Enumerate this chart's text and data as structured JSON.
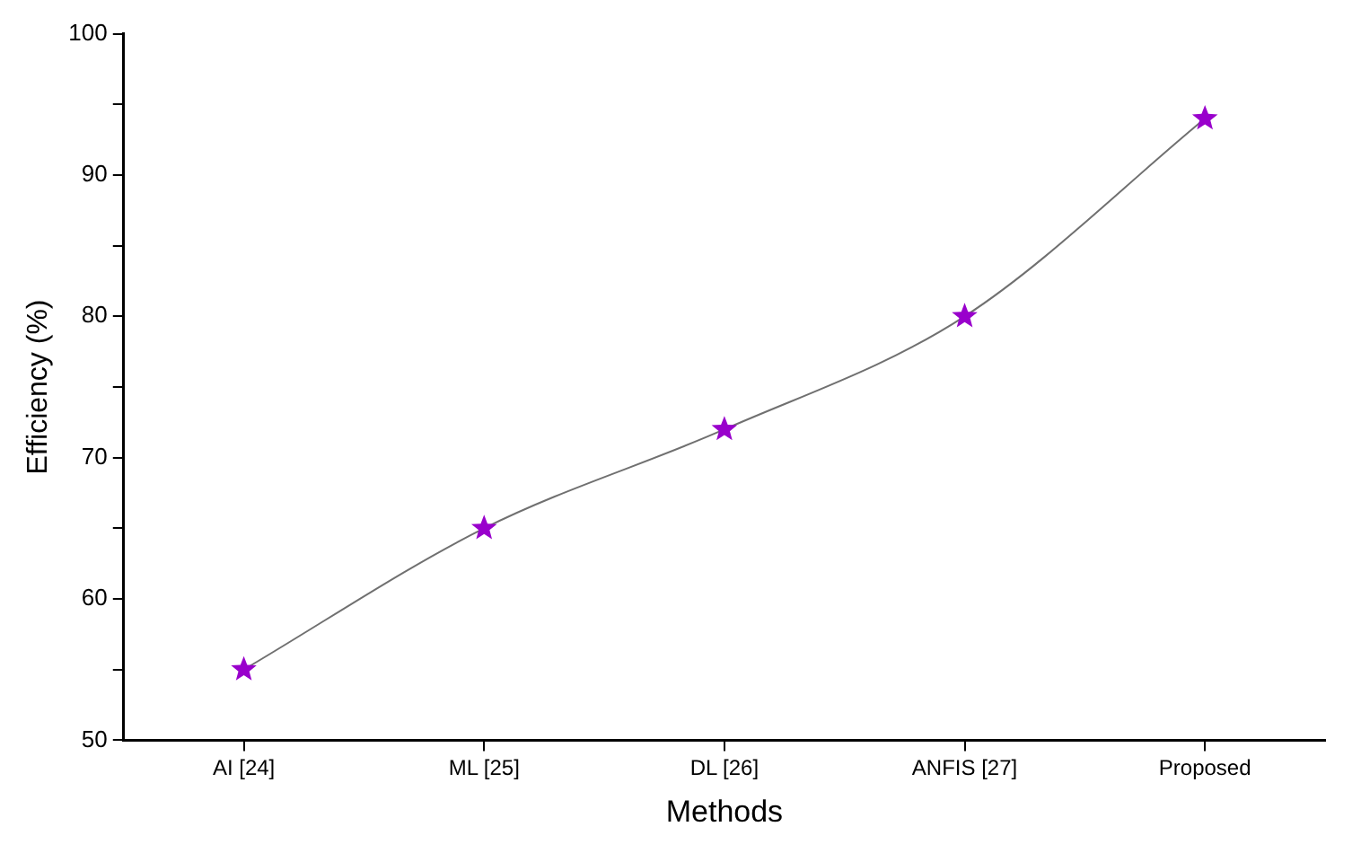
{
  "chart_data": {
    "type": "line",
    "xlabel": "Methods",
    "ylabel": "Efficiency (%)",
    "categories": [
      "AI [24]",
      "ML [25]",
      "DL [26]",
      "ANFIS [27]",
      "Proposed"
    ],
    "series": [
      {
        "color": "#9900cc",
        "values": [
          55,
          65,
          72,
          80,
          94
        ]
      }
    ],
    "ylim": [
      50,
      100
    ],
    "yticks": [
      50,
      {
        "value": 55,
        "label": null
      },
      60,
      {
        "value": 65,
        "label": null
      },
      70,
      {
        "value": 75,
        "label": null
      },
      80,
      {
        "value": 85,
        "label": null
      },
      90,
      {
        "value": 95,
        "label": null
      },
      100
    ],
    "grid": false,
    "legend": false,
    "marker": "star",
    "line_style": "solid"
  }
}
